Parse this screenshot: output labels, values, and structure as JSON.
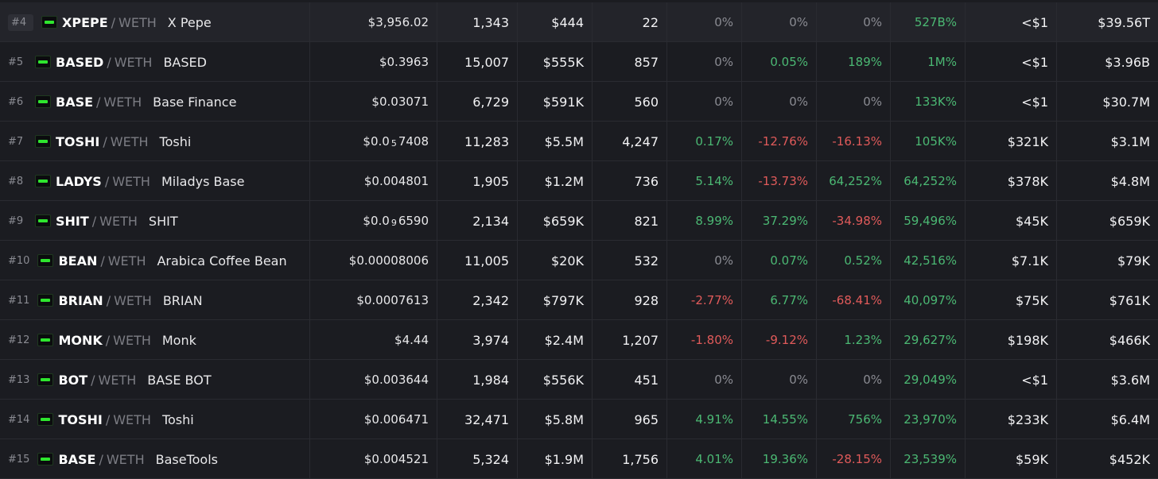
{
  "rows": [
    {
      "rank": "#4",
      "symbol": "XPEPE",
      "quote": "WETH",
      "name": "X Pepe",
      "price": "$3,956.02",
      "txns": "1,343",
      "volume": "$444",
      "makers": "22",
      "m5": "0%",
      "h1": "0%",
      "h6": "0%",
      "h24": "527B%",
      "liquidity": "<$1",
      "fdv": "$39.56T"
    },
    {
      "rank": "#5",
      "symbol": "BASED",
      "quote": "WETH",
      "name": "BASED",
      "price": "$0.3963",
      "txns": "15,007",
      "volume": "$555K",
      "makers": "857",
      "m5": "0%",
      "h1": "0.05%",
      "h6": "189%",
      "h24": "1M%",
      "liquidity": "<$1",
      "fdv": "$3.96B"
    },
    {
      "rank": "#6",
      "symbol": "BASE",
      "quote": "WETH",
      "name": "Base Finance",
      "price": "$0.03071",
      "txns": "6,729",
      "volume": "$591K",
      "makers": "560",
      "m5": "0%",
      "h1": "0%",
      "h6": "0%",
      "h24": "133K%",
      "liquidity": "<$1",
      "fdv": "$30.7M"
    },
    {
      "rank": "#7",
      "symbol": "TOSHI",
      "quote": "WETH",
      "name": "Toshi",
      "price_pre": "$0.0",
      "price_sub": "5",
      "price_post": "7408",
      "txns": "11,283",
      "volume": "$5.5M",
      "makers": "4,247",
      "m5": "0.17%",
      "h1": "-12.76%",
      "h6": "-16.13%",
      "h24": "105K%",
      "liquidity": "$321K",
      "fdv": "$3.1M"
    },
    {
      "rank": "#8",
      "symbol": "LADYS",
      "quote": "WETH",
      "name": "Miladys Base",
      "price": "$0.004801",
      "txns": "1,905",
      "volume": "$1.2M",
      "makers": "736",
      "m5": "5.14%",
      "h1": "-13.73%",
      "h6": "64,252%",
      "h24": "64,252%",
      "liquidity": "$378K",
      "fdv": "$4.8M"
    },
    {
      "rank": "#9",
      "symbol": "SHIT",
      "quote": "WETH",
      "name": "SHIT",
      "price_pre": "$0.0",
      "price_sub": "9",
      "price_post": "6590",
      "txns": "2,134",
      "volume": "$659K",
      "makers": "821",
      "m5": "8.99%",
      "h1": "37.29%",
      "h6": "-34.98%",
      "h24": "59,496%",
      "liquidity": "$45K",
      "fdv": "$659K"
    },
    {
      "rank": "#10",
      "symbol": "BEAN",
      "quote": "WETH",
      "name": "Arabica Coffee Bean",
      "price": "$0.00008006",
      "txns": "11,005",
      "volume": "$20K",
      "makers": "532",
      "m5": "0%",
      "h1": "0.07%",
      "h6": "0.52%",
      "h24": "42,516%",
      "liquidity": "$7.1K",
      "fdv": "$79K"
    },
    {
      "rank": "#11",
      "symbol": "BRIAN",
      "quote": "WETH",
      "name": "BRIAN",
      "price": "$0.0007613",
      "txns": "2,342",
      "volume": "$797K",
      "makers": "928",
      "m5": "-2.77%",
      "h1": "6.77%",
      "h6": "-68.41%",
      "h24": "40,097%",
      "liquidity": "$75K",
      "fdv": "$761K"
    },
    {
      "rank": "#12",
      "symbol": "MONK",
      "quote": "WETH",
      "name": "Monk",
      "price": "$4.44",
      "txns": "3,974",
      "volume": "$2.4M",
      "makers": "1,207",
      "m5": "-1.80%",
      "h1": "-9.12%",
      "h6": "1.23%",
      "h24": "29,627%",
      "liquidity": "$198K",
      "fdv": "$466K"
    },
    {
      "rank": "#13",
      "symbol": "BOT",
      "quote": "WETH",
      "name": "BASE BOT",
      "price": "$0.003644",
      "txns": "1,984",
      "volume": "$556K",
      "makers": "451",
      "m5": "0%",
      "h1": "0%",
      "h6": "0%",
      "h24": "29,049%",
      "liquidity": "<$1",
      "fdv": "$3.6M"
    },
    {
      "rank": "#14",
      "symbol": "TOSHI",
      "quote": "WETH",
      "name": "Toshi",
      "price": "$0.006471",
      "txns": "32,471",
      "volume": "$5.8M",
      "makers": "965",
      "m5": "4.91%",
      "h1": "14.55%",
      "h6": "756%",
      "h24": "23,970%",
      "liquidity": "$233K",
      "fdv": "$6.4M"
    },
    {
      "rank": "#15",
      "symbol": "BASE",
      "quote": "WETH",
      "name": "BaseTools",
      "price": "$0.004521",
      "txns": "5,324",
      "volume": "$1.9M",
      "makers": "1,756",
      "m5": "4.01%",
      "h1": "19.36%",
      "h6": "-28.15%",
      "h24": "23,539%",
      "liquidity": "$59K",
      "fdv": "$452K"
    }
  ],
  "colors": {
    "positive": "#4bb873",
    "negative": "#e05a5a",
    "neutral": "#8a8b92",
    "logo": "#2ee62e"
  }
}
